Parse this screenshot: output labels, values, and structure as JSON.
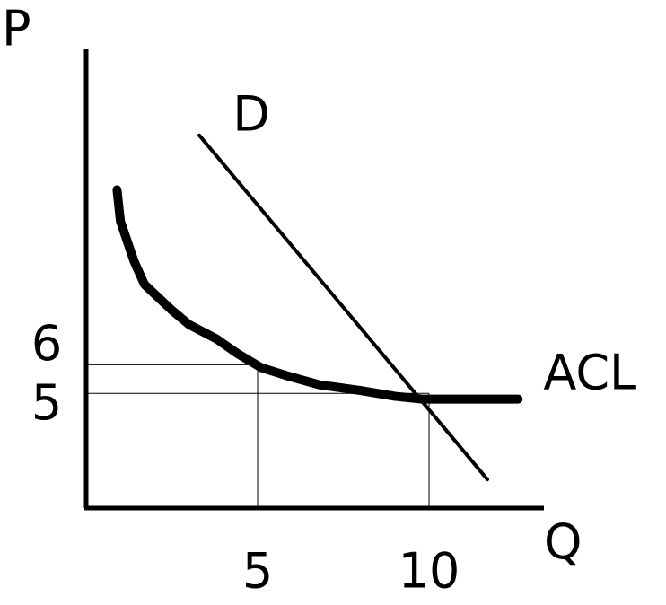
{
  "chart_data": {
    "type": "line",
    "x_label": "Q",
    "y_label": "P",
    "xlim": [
      0,
      13.35
    ],
    "ylim": [
      1,
      17
    ],
    "xticks": [
      5,
      10
    ],
    "yticks": [
      5,
      6
    ],
    "guides": [
      {
        "x": 5,
        "y": 6
      },
      {
        "x": 10,
        "y": 5
      }
    ],
    "series": [
      {
        "name": "D",
        "color": "#000000",
        "x": [
          3.3,
          11.7
        ],
        "values": [
          14.0,
          2.0
        ]
      },
      {
        "name": "ACL",
        "color": "#000000",
        "x": [
          0.9,
          1.0,
          1.4,
          1.7,
          2.5,
          3.0,
          3.8,
          4.4,
          5.1,
          5.9,
          6.8,
          8.0,
          9.0,
          9.8,
          12.6
        ],
        "values": [
          12.1,
          11.0,
          9.6,
          8.8,
          7.9,
          7.4,
          6.9,
          6.4,
          5.9,
          5.6,
          5.3,
          5.1,
          4.9,
          4.8,
          4.8
        ]
      }
    ]
  }
}
